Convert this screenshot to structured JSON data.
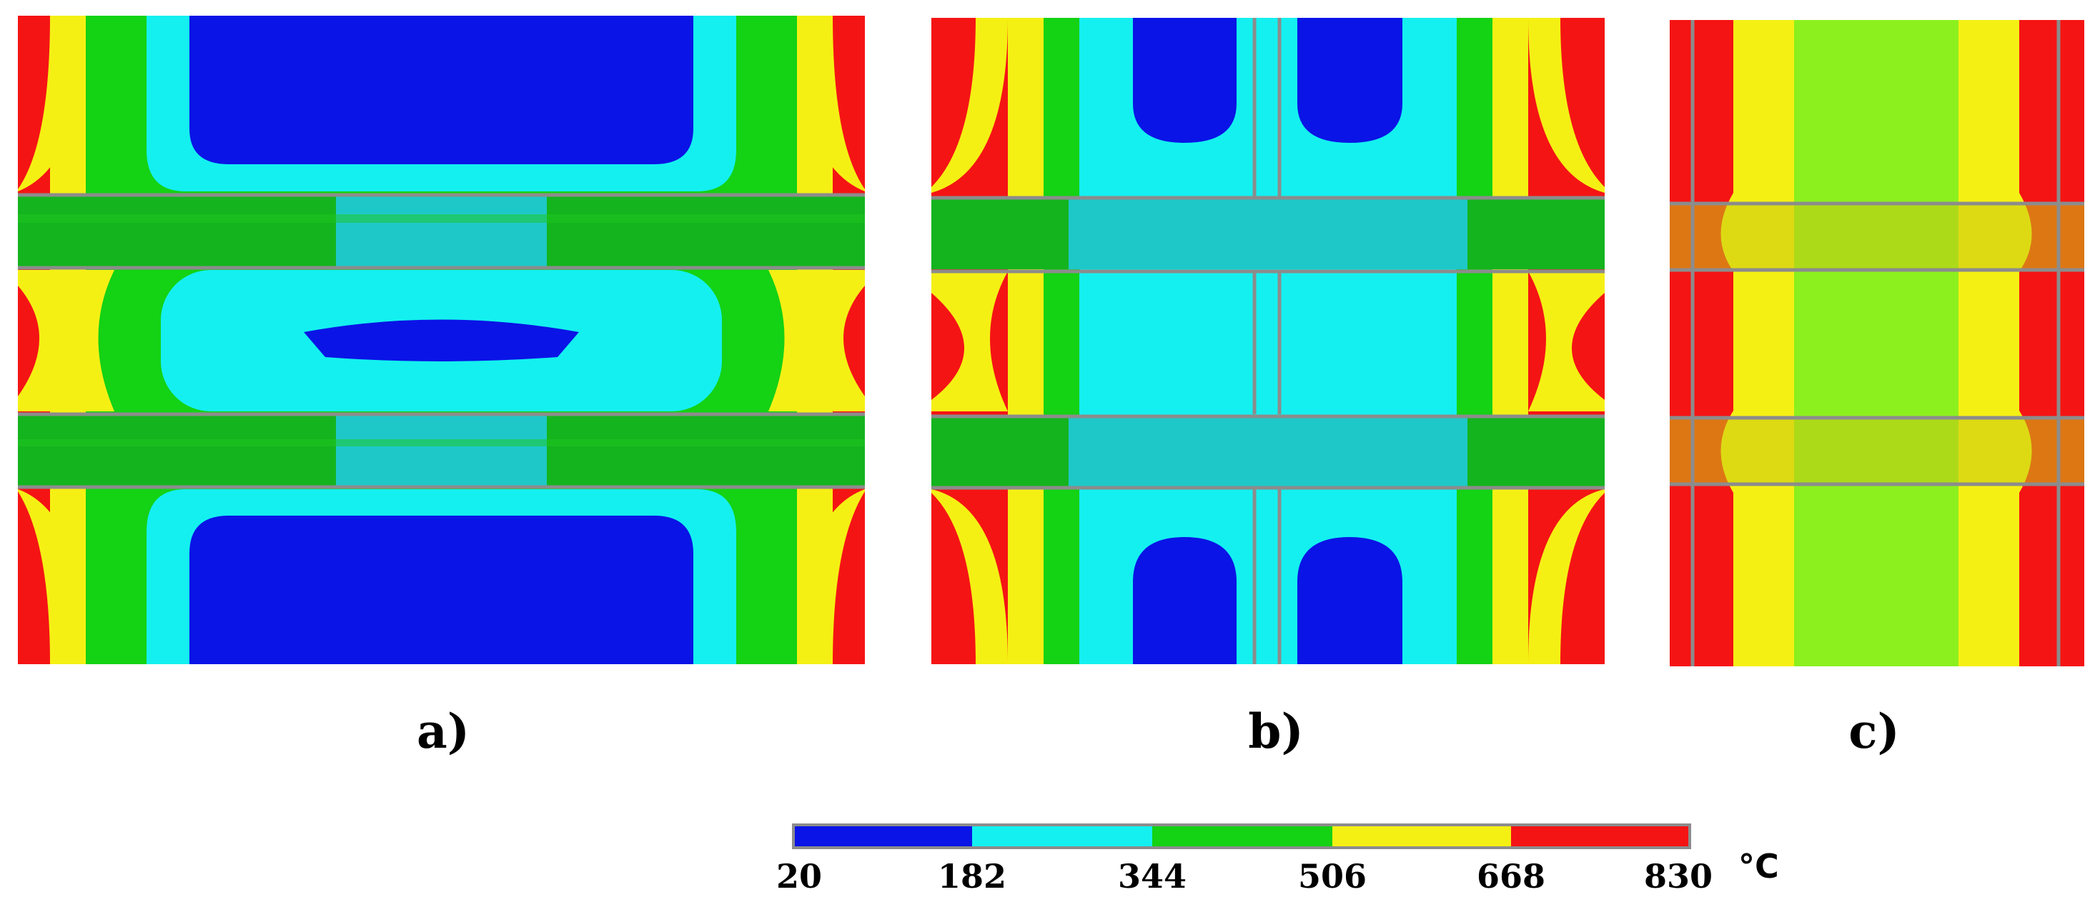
{
  "panels": [
    {
      "id": "a",
      "label": "a)"
    },
    {
      "id": "b",
      "label": "b)"
    },
    {
      "id": "c",
      "label": "c)"
    }
  ],
  "colorbar": {
    "ticks": [
      "20",
      "182",
      "344",
      "506",
      "668",
      "830"
    ],
    "unit": "°C",
    "colors": [
      "#0a14e6",
      "#14f0f0",
      "#14d214",
      "#f5f014",
      "#f51414"
    ]
  },
  "palette": {
    "blue": "#0a14e6",
    "cyan": "#14f0f0",
    "green": "#14d214",
    "yellow": "#f5f014",
    "red": "#f51414",
    "chartreuse": "#8cf01e",
    "teal": "#1ec8c8",
    "dark-green": "#14b41e",
    "grid": "#8c8c8c"
  }
}
